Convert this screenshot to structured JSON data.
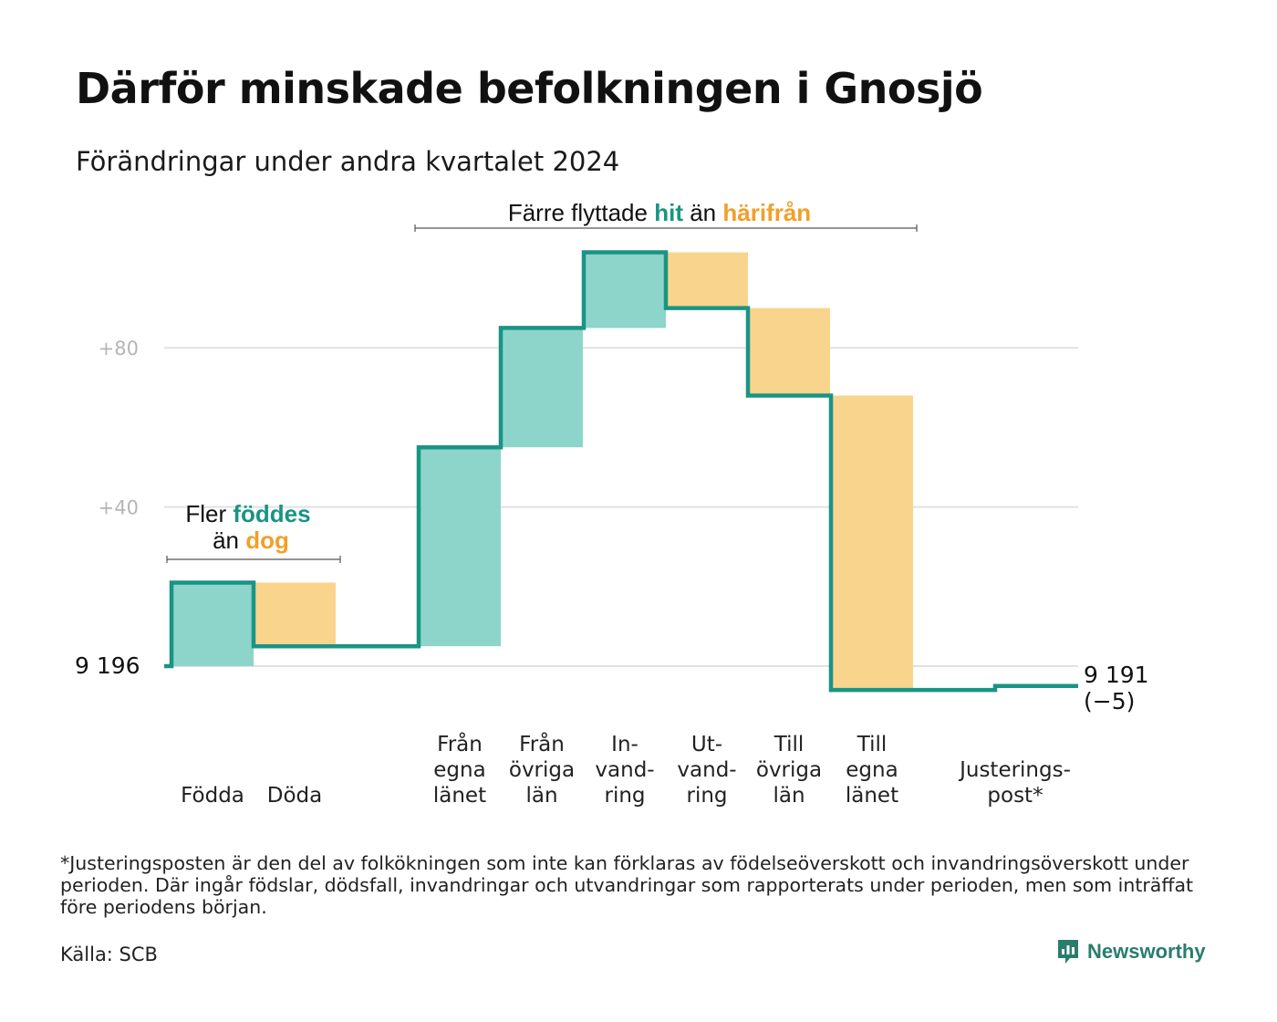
{
  "title": "Därför minskade befolkningen i Gnosjö",
  "subtitle": "Förändringar under andra kvartalet 2024",
  "colors": {
    "inflow": "#8dd5cb",
    "outflow": "#f9d48c",
    "line": "#1a9484",
    "teal_text": "#1a9484",
    "orange_text": "#f0a02a",
    "grid": "#e2e2e2",
    "axis_text": "#b5b5b5"
  },
  "annotations": {
    "births": {
      "line1_prefix": "Fler ",
      "line1_highlight": "föddes",
      "line2_prefix": "än ",
      "line2_highlight": "dog"
    },
    "migration": {
      "prefix": "Färre flyttade ",
      "highlight1": "hit",
      "middle": " än ",
      "highlight2": "härifrån"
    }
  },
  "chart_data": {
    "type": "waterfall",
    "title": "Därför minskade befolkningen i Gnosjö",
    "subtitle": "Förändringar under andra kvartalet 2024",
    "start_value": 9196,
    "start_label": "9  196",
    "end_value": 9191,
    "end_label": "9 191",
    "end_change_label": "(−5)",
    "y_ticks": [
      {
        "value": 40,
        "label": "+40"
      },
      {
        "value": 80,
        "label": "+80"
      }
    ],
    "y_range": [
      -10,
      108
    ],
    "steps": [
      {
        "label": [
          "Födda"
        ],
        "change": 21,
        "kind": "in"
      },
      {
        "label": [
          "Döda"
        ],
        "change": -16,
        "kind": "out"
      },
      {
        "label": [
          "Från",
          "egna",
          "länet"
        ],
        "change": 50,
        "kind": "in"
      },
      {
        "label": [
          "Från",
          "övriga",
          "län"
        ],
        "change": 30,
        "kind": "in"
      },
      {
        "label": [
          "In-",
          "vand-",
          "ring"
        ],
        "change": 19,
        "kind": "in"
      },
      {
        "label": [
          "Ut-",
          "vand-",
          "ring"
        ],
        "change": -14,
        "kind": "out"
      },
      {
        "label": [
          "Till",
          "övriga",
          "län"
        ],
        "change": -22,
        "kind": "out"
      },
      {
        "label": [
          "Till",
          "egna",
          "länet"
        ],
        "change": -74,
        "kind": "out"
      },
      {
        "label": [
          "Justerings-",
          "post*"
        ],
        "change": 1,
        "kind": "adjust"
      }
    ]
  },
  "footnote": "*Justeringsposten är den del av folkökningen som inte kan förklaras av födelseöverskott och invandringsöverskott under perioden. Där ingår födslar, dödsfall, invandringar och utvandringar som rapporterats under perioden, men som inträffat före periodens början.",
  "source": "Källa: SCB",
  "brand": {
    "name": "Newsworthy",
    "icon": "newsworthy-logo-icon"
  }
}
